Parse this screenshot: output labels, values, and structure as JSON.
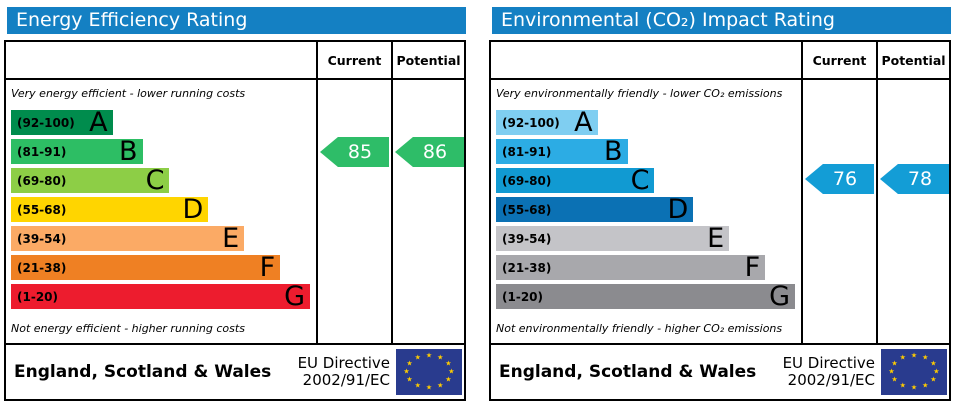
{
  "panels": [
    {
      "title": "Energy Efficiency Rating",
      "title_bg": "#1480c3",
      "columns": {
        "current": "Current",
        "potential": "Potential"
      },
      "top_caption": "Very energy efficient - lower running costs",
      "bottom_caption": "Not energy efficient - higher running costs",
      "bands": [
        {
          "range": "(92-100)",
          "letter": "A",
          "color": "#008c4d",
          "width_pct": 34
        },
        {
          "range": "(81-91)",
          "letter": "B",
          "color": "#2dbe64",
          "width_pct": 44
        },
        {
          "range": "(69-80)",
          "letter": "C",
          "color": "#8dce46",
          "width_pct": 53
        },
        {
          "range": "(55-68)",
          "letter": "D",
          "color": "#ffd500",
          "width_pct": 66
        },
        {
          "range": "(39-54)",
          "letter": "E",
          "color": "#fbaa65",
          "width_pct": 78
        },
        {
          "range": "(21-38)",
          "letter": "F",
          "color": "#ef8023",
          "width_pct": 90
        },
        {
          "range": "(1-20)",
          "letter": "G",
          "color": "#ed1c2e",
          "width_pct": 100
        }
      ],
      "current": {
        "value": "85",
        "color": "#2ebd68"
      },
      "potential": {
        "value": "86",
        "color": "#2ebd68"
      },
      "footer": {
        "region": "England, Scotland & Wales",
        "directive1": "EU Directive",
        "directive2": "2002/91/EC",
        "flag_color": "#293b8e",
        "star_color": "#ffcc00"
      }
    },
    {
      "title": "Environmental (CO₂) Impact Rating",
      "title_bg": "#1480c3",
      "columns": {
        "current": "Current",
        "potential": "Potential"
      },
      "top_caption": "Very environmentally friendly - lower CO₂ emissions",
      "bottom_caption": "Not environmentally friendly - higher CO₂ emissions",
      "bands": [
        {
          "range": "(92-100)",
          "letter": "A",
          "color": "#7fcef1",
          "width_pct": 34
        },
        {
          "range": "(81-91)",
          "letter": "B",
          "color": "#2cace4",
          "width_pct": 44
        },
        {
          "range": "(69-80)",
          "letter": "C",
          "color": "#119ad2",
          "width_pct": 53
        },
        {
          "range": "(55-68)",
          "letter": "D",
          "color": "#0b71b4",
          "width_pct": 66
        },
        {
          "range": "(39-54)",
          "letter": "E",
          "color": "#c4c4c8",
          "width_pct": 78
        },
        {
          "range": "(21-38)",
          "letter": "F",
          "color": "#a8a8ac",
          "width_pct": 90
        },
        {
          "range": "(1-20)",
          "letter": "G",
          "color": "#8b8b8f",
          "width_pct": 100
        }
      ],
      "current": {
        "value": "76",
        "color": "#139dd6"
      },
      "potential": {
        "value": "78",
        "color": "#139dd6"
      },
      "footer": {
        "region": "England, Scotland & Wales",
        "directive1": "EU Directive",
        "directive2": "2002/91/EC",
        "flag_color": "#293b8e",
        "star_color": "#ffcc00"
      }
    }
  ],
  "chart_data": [
    {
      "type": "bar",
      "title": "Energy Efficiency Rating",
      "orientation": "horizontal",
      "categories": [
        "A (92-100)",
        "B (81-91)",
        "C (69-80)",
        "D (55-68)",
        "E (39-54)",
        "F (21-38)",
        "G (1-20)"
      ],
      "values": [
        34,
        44,
        53,
        66,
        78,
        90,
        100
      ],
      "values_note": "decorative band bar lengths as % of chart width",
      "band_colors": [
        "#008c4d",
        "#2dbe64",
        "#8dce46",
        "#ffd500",
        "#fbaa65",
        "#ef8023",
        "#ed1c2e"
      ],
      "annotations": {
        "current": 85,
        "current_band": "B",
        "potential": 86,
        "potential_band": "B"
      },
      "top_caption": "Very energy efficient - lower running costs",
      "bottom_caption": "Not energy efficient - higher running costs",
      "columns": [
        "Current",
        "Potential"
      ],
      "footer": "England, Scotland & Wales — EU Directive 2002/91/EC"
    },
    {
      "type": "bar",
      "title": "Environmental (CO₂) Impact Rating",
      "orientation": "horizontal",
      "categories": [
        "A (92-100)",
        "B (81-91)",
        "C (69-80)",
        "D (55-68)",
        "E (39-54)",
        "F (21-38)",
        "G (1-20)"
      ],
      "values": [
        34,
        44,
        53,
        66,
        78,
        90,
        100
      ],
      "values_note": "decorative band bar lengths as % of chart width",
      "band_colors": [
        "#7fcef1",
        "#2cace4",
        "#119ad2",
        "#0b71b4",
        "#c4c4c8",
        "#a8a8ac",
        "#8b8b8f"
      ],
      "annotations": {
        "current": 76,
        "current_band": "C",
        "potential": 78,
        "potential_band": "C"
      },
      "top_caption": "Very environmentally friendly - lower CO₂ emissions",
      "bottom_caption": "Not environmentally friendly - higher CO₂ emissions",
      "columns": [
        "Current",
        "Potential"
      ],
      "footer": "England, Scotland & Wales — EU Directive 2002/91/EC"
    }
  ]
}
